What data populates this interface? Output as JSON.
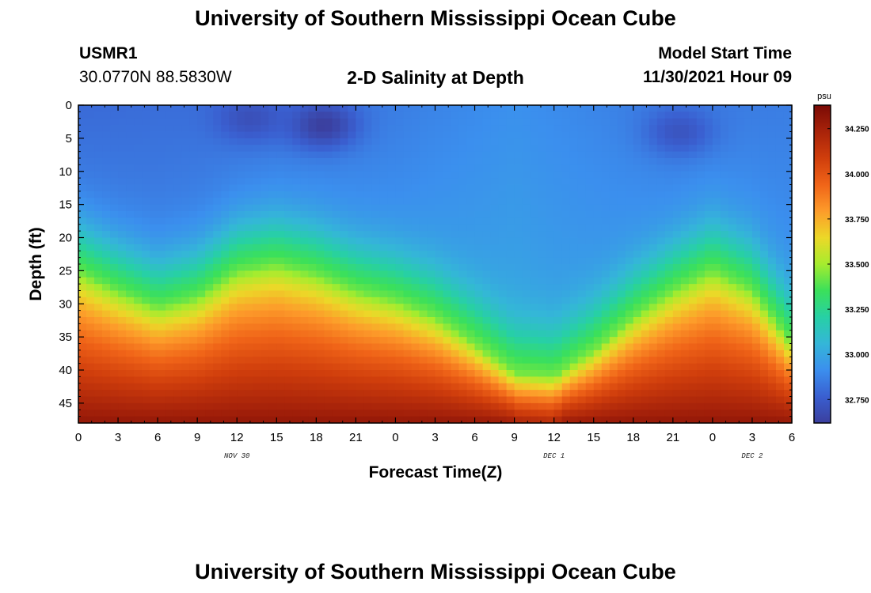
{
  "header": {
    "title": "University of Southern Mississippi Ocean Cube",
    "station_id": "USMR1",
    "station_coords": "30.0770N  88.5830W",
    "subtitle": "2-D Salinity at Depth",
    "model_start_label": "Model Start Time",
    "model_start_value": "11/30/2021 Hour 09"
  },
  "footer": {
    "title": "University of Southern Mississippi Ocean Cube"
  },
  "chart_data": {
    "type": "heatmap",
    "title": "2-D Salinity at Depth",
    "xlabel": "Forecast Time(Z)",
    "ylabel": "Depth (ft)",
    "x_hours_range": [
      0,
      54
    ],
    "x_tick_labels": [
      "0",
      "3",
      "6",
      "9",
      "12",
      "15",
      "18",
      "21",
      "0",
      "3",
      "6",
      "9",
      "12",
      "15",
      "18",
      "21",
      "0",
      "3",
      "6"
    ],
    "date_labels": [
      {
        "label": "NOV 30",
        "hour": 12
      },
      {
        "label": "DEC 1",
        "hour": 36
      },
      {
        "label": "DEC 2",
        "hour": 51
      }
    ],
    "y_range": [
      0,
      48
    ],
    "y_inverted": true,
    "y_tick_labels": [
      "0",
      "5",
      "10",
      "15",
      "20",
      "25",
      "30",
      "35",
      "40",
      "45"
    ],
    "colorbar": {
      "unit": "psu",
      "min": 32.62,
      "max": 34.38,
      "ticks": [
        "32.750",
        "33.000",
        "33.250",
        "33.500",
        "33.750",
        "34.000",
        "34.250"
      ],
      "colors": [
        "#3b3f9e",
        "#3a5fd0",
        "#3b8fee",
        "#34b6d8",
        "#27d0a5",
        "#3be05a",
        "#a6ec2e",
        "#ecd828",
        "#fd9b2a",
        "#f06418",
        "#d03e0c",
        "#a8230a",
        "#7a0a05"
      ]
    },
    "salinity_model": {
      "description": "Halocline depth (ft) vs forecast hour; fresher surface layer above, saltier water below",
      "halocline_depth_ft": [
        [
          0,
          21
        ],
        [
          3,
          24
        ],
        [
          6,
          26.5
        ],
        [
          9,
          25
        ],
        [
          12,
          21
        ],
        [
          15,
          20
        ],
        [
          18,
          21.5
        ],
        [
          21,
          24
        ],
        [
          24,
          25.5
        ],
        [
          27,
          28
        ],
        [
          30,
          32
        ],
        [
          33,
          36.5
        ],
        [
          36,
          37
        ],
        [
          39,
          33
        ],
        [
          42,
          28
        ],
        [
          45,
          24
        ],
        [
          48,
          21
        ],
        [
          51,
          24
        ],
        [
          54,
          32
        ]
      ],
      "surface_salinity_by_hour": [
        [
          0,
          32.8
        ],
        [
          12,
          32.82
        ],
        [
          24,
          32.86
        ],
        [
          33,
          32.92
        ],
        [
          45,
          32.85
        ],
        [
          54,
          32.86
        ]
      ],
      "fresh_patches": [
        {
          "hour": 18.5,
          "depth_ft": 3,
          "min_salinity": 32.62
        },
        {
          "hour": 13,
          "depth_ft": 2,
          "min_salinity": 32.7
        },
        {
          "hour": 45.5,
          "depth_ft": 4,
          "min_salinity": 32.72
        }
      ],
      "bottom_salinity": 34.3
    }
  }
}
